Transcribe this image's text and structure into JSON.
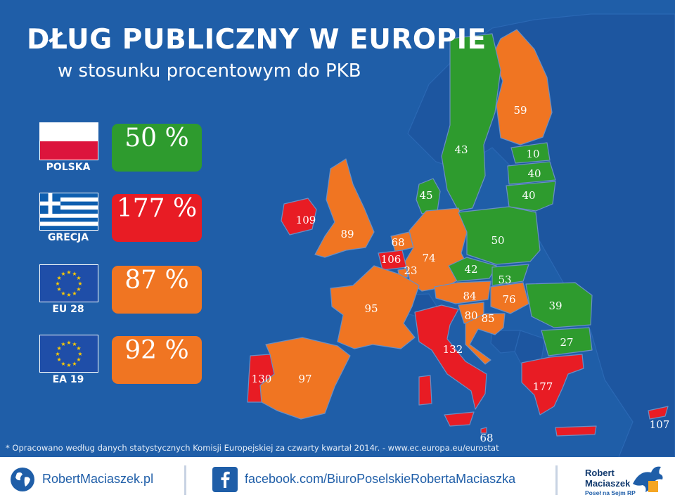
{
  "header": {
    "title": "DŁUG PUBLICZNY W EUROPIE",
    "subtitle": "w stosunku procentowym do PKB"
  },
  "colors": {
    "background": "#1f5ea8",
    "non_eu_land": "#1d56a0",
    "low": "#2e9b2e",
    "medium": "#f07522",
    "high": "#e81c24"
  },
  "legend": [
    {
      "label": "POLSKA",
      "value": "50 %",
      "color": "#2e9b2e",
      "flag": "poland-flag-icon"
    },
    {
      "label": "GRECJA",
      "value": "177 %",
      "color": "#e81c24",
      "flag": "greece-flag-icon"
    },
    {
      "label": "EU 28",
      "value": "87 %",
      "color": "#f07522",
      "flag": "eu-flag-icon"
    },
    {
      "label": "EA 19",
      "value": "92 %",
      "color": "#f07522",
      "flag": "eu-flag-icon"
    }
  ],
  "map_values": {
    "finland": "59",
    "sweden": "43",
    "estonia": "10",
    "latvia": "40",
    "lithuania": "40",
    "denmark": "45",
    "ireland": "109",
    "united_kingdom": "89",
    "netherlands": "68",
    "belgium": "106",
    "luxembourg": "23",
    "germany": "74",
    "poland": "50",
    "czechia": "42",
    "slovakia": "53",
    "austria": "84",
    "hungary": "76",
    "romania": "39",
    "bulgaria": "27",
    "slovenia": "80",
    "croatia": "85",
    "france": "95",
    "spain": "97",
    "portugal": "130",
    "italy": "132",
    "greece": "177",
    "malta": "68",
    "cyprus": "107"
  },
  "footnote": "* Opracowano według danych statystycznych Komisji Europejskiej za czwarty kwartał 2014r. - www.ec.europa.eu/eurostat",
  "footer": {
    "website": "RobertMaciaszek.pl",
    "facebook": "facebook.com/BiuroPoselskieRobertaMaciaszka",
    "brand_line1": "Robert",
    "brand_line2": "Maciaszek",
    "brand_sub": "Poseł na Sejm RP"
  }
}
